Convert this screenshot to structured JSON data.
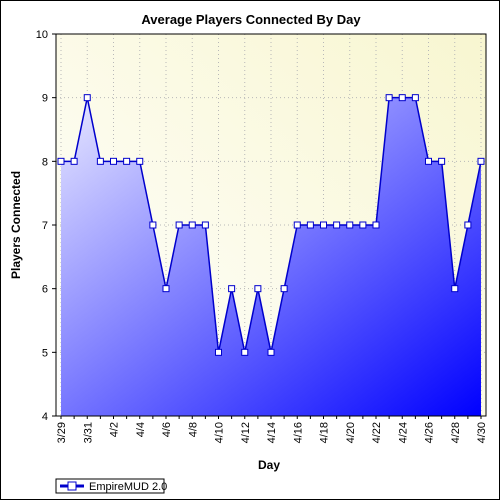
{
  "chart_data": {
    "type": "area",
    "title": "Average Players Connected By Day",
    "xlabel": "Day",
    "ylabel": "Players Connected",
    "ylim": [
      4,
      10
    ],
    "yticks": [
      4,
      5,
      6,
      7,
      8,
      9,
      10
    ],
    "x": [
      "3/29",
      "3/30",
      "3/31",
      "4/1",
      "4/2",
      "4/3",
      "4/4",
      "4/5",
      "4/6",
      "4/7",
      "4/8",
      "4/9",
      "4/10",
      "4/11",
      "4/12",
      "4/13",
      "4/14",
      "4/15",
      "4/16",
      "4/17",
      "4/18",
      "4/19",
      "4/20",
      "4/21",
      "4/22",
      "4/23",
      "4/24",
      "4/25",
      "4/26",
      "4/27",
      "4/28",
      "4/29",
      "4/30"
    ],
    "xtick_labels": [
      "3/29",
      "3/31",
      "4/2",
      "4/4",
      "4/6",
      "4/8",
      "4/10",
      "4/12",
      "4/14",
      "4/16",
      "4/18",
      "4/20",
      "4/22",
      "4/24",
      "4/26",
      "4/28",
      "4/30"
    ],
    "series": [
      {
        "name": "EmpireMUD 2.0",
        "values": [
          8,
          8,
          9,
          8,
          8,
          8,
          8,
          7,
          6,
          7,
          7,
          7,
          5,
          6,
          5,
          6,
          5,
          6,
          7,
          7,
          7,
          7,
          7,
          7,
          7,
          9,
          9,
          9,
          8,
          8,
          6,
          7,
          8
        ]
      }
    ],
    "grid": true,
    "legend": "bottom-left",
    "colors": {
      "line": "#0000cc",
      "fill_light": "#e8e8ff",
      "fill_dark": "#0000ff",
      "plot_bg_light": "#ffffff",
      "plot_bg_warm": "#f8f6d0",
      "marker_fill": "#ffffff"
    }
  }
}
